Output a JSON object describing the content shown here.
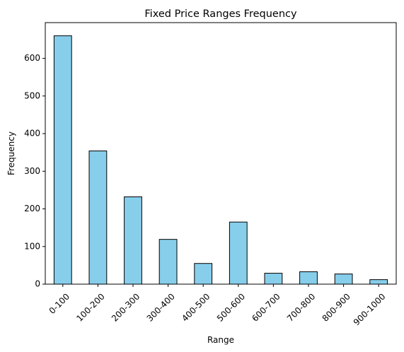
{
  "chart_data": {
    "type": "bar",
    "title": "Fixed Price Ranges Frequency",
    "xlabel": "Range",
    "ylabel": "Frequency",
    "categories": [
      "0-100",
      "100-200",
      "200-300",
      "300-400",
      "400-500",
      "500-600",
      "600-700",
      "700-800",
      "800-900",
      "900-1000"
    ],
    "values": [
      660,
      354,
      232,
      119,
      55,
      165,
      29,
      33,
      27,
      12
    ],
    "ylim": [
      0,
      695
    ],
    "yticks": [
      0,
      100,
      200,
      300,
      400,
      500,
      600
    ],
    "bar_color": "#87CEEB",
    "edge_color": "#000000",
    "grid": false,
    "legend": "none"
  }
}
